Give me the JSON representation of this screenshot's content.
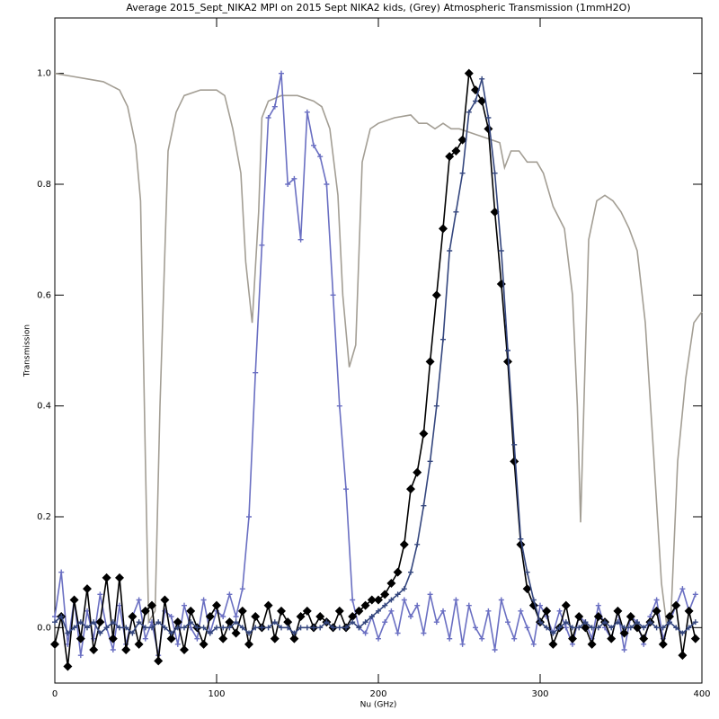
{
  "chart_data": {
    "type": "line",
    "title": "Average 2015_Sept_NIKA2 MPI on 2015 Sept NIKA2 kids, (Grey) Atmospheric Transmission (1mmH2O)",
    "x_label": "Nu (GHz)",
    "y_label": "Transmission",
    "xlim": [
      0,
      400
    ],
    "ylim": [
      -0.1,
      1.1
    ],
    "xticks": [
      0,
      100,
      200,
      300,
      400
    ],
    "yticks": [
      {
        "value": 0,
        "label": "0.0"
      },
      0.2,
      0.4,
      0.6,
      0.8,
      {
        "value": 1,
        "label": "1.0"
      }
    ],
    "x": [
      0,
      4,
      8,
      12,
      16,
      20,
      24,
      28,
      32,
      36,
      40,
      44,
      48,
      52,
      56,
      60,
      64,
      68,
      72,
      76,
      80,
      84,
      88,
      92,
      96,
      100,
      104,
      108,
      112,
      116,
      120,
      124,
      128,
      132,
      136,
      140,
      144,
      148,
      152,
      156,
      160,
      164,
      168,
      172,
      176,
      180,
      184,
      188,
      192,
      196,
      200,
      204,
      208,
      212,
      216,
      220,
      224,
      228,
      232,
      236,
      240,
      244,
      248,
      252,
      256,
      260,
      264,
      268,
      272,
      276,
      280,
      284,
      288,
      292,
      296,
      300,
      304,
      308,
      312,
      316,
      320,
      324,
      328,
      332,
      336,
      340,
      344,
      348,
      352,
      356,
      360,
      364,
      368,
      372,
      376,
      380,
      384,
      388,
      392,
      396
    ],
    "series": [
      {
        "color": "#a39e94",
        "marker": "none",
        "x": [
          0,
          10,
          20,
          30,
          40,
          45,
          50,
          53,
          56,
          58,
          62,
          65,
          70,
          75,
          80,
          90,
          100,
          105,
          110,
          115,
          118,
          122,
          126,
          128,
          132,
          140,
          150,
          160,
          165,
          170,
          175,
          178,
          182,
          186,
          190,
          195,
          200,
          210,
          220,
          225,
          230,
          235,
          240,
          245,
          250,
          260,
          270,
          275,
          278,
          282,
          287,
          292,
          298,
          302,
          308,
          315,
          320,
          323,
          325,
          328,
          330,
          335,
          340,
          345,
          350,
          355,
          360,
          365,
          370,
          375,
          378,
          381,
          385,
          390,
          395,
          400
        ],
        "values": [
          1.0,
          0.995,
          0.99,
          0.985,
          0.97,
          0.94,
          0.87,
          0.77,
          0.3,
          0.01,
          0.03,
          0.4,
          0.86,
          0.93,
          0.96,
          0.97,
          0.97,
          0.96,
          0.9,
          0.82,
          0.66,
          0.55,
          0.75,
          0.92,
          0.95,
          0.96,
          0.96,
          0.95,
          0.94,
          0.9,
          0.78,
          0.6,
          0.47,
          0.51,
          0.84,
          0.9,
          0.91,
          0.92,
          0.925,
          0.91,
          0.91,
          0.9,
          0.91,
          0.9,
          0.9,
          0.89,
          0.88,
          0.875,
          0.83,
          0.86,
          0.86,
          0.84,
          0.84,
          0.82,
          0.76,
          0.72,
          0.6,
          0.4,
          0.19,
          0.5,
          0.7,
          0.77,
          0.78,
          0.77,
          0.75,
          0.72,
          0.68,
          0.55,
          0.32,
          0.08,
          0.01,
          0.03,
          0.3,
          0.45,
          0.55,
          0.57
        ]
      },
      {
        "color": "#6a6fc2",
        "marker": "plus",
        "values": [
          0.02,
          0.1,
          -0.03,
          0.05,
          -0.05,
          0.03,
          -0.02,
          0.06,
          0.0,
          -0.04,
          0.04,
          -0.03,
          0.02,
          0.05,
          -0.02,
          0.01,
          -0.05,
          0.03,
          0.02,
          -0.03,
          0.04,
          0.0,
          -0.02,
          0.05,
          -0.01,
          0.03,
          0.02,
          0.06,
          0.02,
          0.07,
          0.2,
          0.46,
          0.69,
          0.92,
          0.94,
          1.0,
          0.8,
          0.81,
          0.7,
          0.93,
          0.87,
          0.85,
          0.8,
          0.6,
          0.4,
          0.25,
          0.05,
          0.0,
          -0.01,
          0.02,
          -0.02,
          0.01,
          0.03,
          -0.01,
          0.05,
          0.02,
          0.04,
          -0.01,
          0.06,
          0.01,
          0.03,
          -0.02,
          0.05,
          -0.03,
          0.04,
          0.0,
          -0.02,
          0.03,
          -0.04,
          0.05,
          0.01,
          -0.02,
          0.03,
          0.0,
          -0.03,
          0.04,
          0.02,
          -0.01,
          0.03,
          0.0,
          -0.03,
          0.02,
          0.01,
          -0.02,
          0.04,
          0.0,
          -0.02,
          0.03,
          -0.04,
          0.02,
          0.01,
          -0.03,
          0.02,
          0.05,
          -0.02,
          0.01,
          0.04,
          0.07,
          0.03,
          0.06
        ]
      },
      {
        "color": "#000000",
        "marker": "diamond",
        "values": [
          -0.03,
          0.02,
          -0.07,
          0.05,
          -0.02,
          0.07,
          -0.04,
          0.01,
          0.09,
          -0.02,
          0.09,
          -0.04,
          0.02,
          -0.03,
          0.03,
          0.04,
          -0.06,
          0.05,
          -0.02,
          0.01,
          -0.04,
          0.03,
          0.0,
          -0.03,
          0.02,
          0.04,
          -0.02,
          0.01,
          -0.01,
          0.03,
          -0.03,
          0.02,
          0.0,
          0.04,
          -0.02,
          0.03,
          0.01,
          -0.02,
          0.02,
          0.03,
          0.0,
          0.02,
          0.01,
          0.0,
          0.03,
          0.0,
          0.02,
          0.03,
          0.04,
          0.05,
          0.05,
          0.06,
          0.08,
          0.1,
          0.15,
          0.25,
          0.28,
          0.35,
          0.48,
          0.6,
          0.72,
          0.85,
          0.86,
          0.88,
          1.0,
          0.97,
          0.95,
          0.9,
          0.75,
          0.62,
          0.48,
          0.3,
          0.15,
          0.07,
          0.04,
          0.01,
          0.03,
          -0.03,
          0.0,
          0.04,
          -0.02,
          0.02,
          0.0,
          -0.03,
          0.02,
          0.01,
          -0.02,
          0.03,
          -0.01,
          0.02,
          0.0,
          -0.02,
          0.01,
          0.03,
          -0.03,
          0.02,
          0.04,
          -0.05,
          0.03,
          -0.02
        ]
      },
      {
        "color": "#34467e",
        "marker": "plus",
        "values": [
          0.01,
          0.02,
          -0.01,
          0.0,
          0.01,
          0.0,
          0.01,
          -0.01,
          0.0,
          0.01,
          0.0,
          0.0,
          -0.01,
          0.01,
          0.0,
          0.0,
          0.01,
          0.0,
          -0.01,
          0.0,
          0.0,
          0.01,
          0.0,
          0.0,
          -0.01,
          0.0,
          0.0,
          0.0,
          0.01,
          0.0,
          -0.01,
          0.0,
          0.0,
          0.0,
          0.01,
          0.0,
          0.0,
          -0.01,
          0.0,
          0.0,
          0.0,
          0.0,
          0.01,
          0.0,
          0.0,
          0.0,
          0.01,
          0.0,
          0.01,
          0.02,
          0.03,
          0.04,
          0.05,
          0.06,
          0.07,
          0.1,
          0.15,
          0.22,
          0.3,
          0.4,
          0.52,
          0.68,
          0.75,
          0.82,
          0.93,
          0.95,
          0.99,
          0.92,
          0.82,
          0.68,
          0.5,
          0.33,
          0.16,
          0.1,
          0.05,
          0.01,
          0.0,
          -0.01,
          0.0,
          0.01,
          0.0,
          0.0,
          0.01,
          0.0,
          0.0,
          0.01,
          0.0,
          0.01,
          0.0,
          0.0,
          0.01,
          0.0,
          0.01,
          0.0,
          0.0,
          0.01,
          0.0,
          -0.01,
          0.0,
          0.01
        ]
      }
    ]
  }
}
